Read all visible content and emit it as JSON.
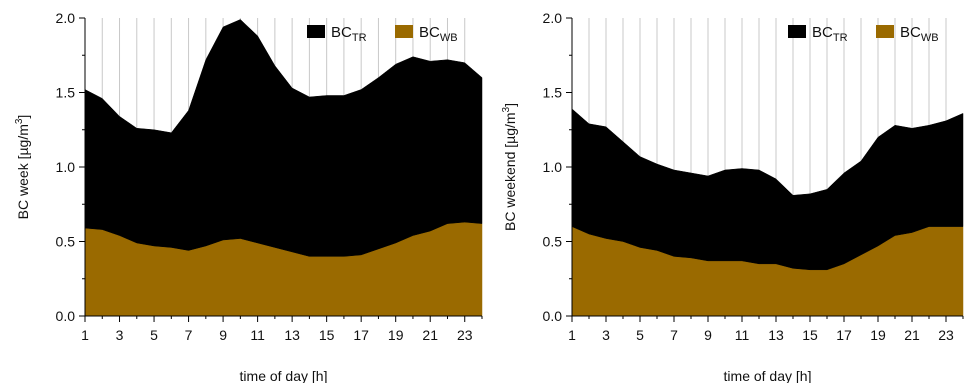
{
  "chart_data": [
    {
      "type": "area",
      "stacked": true,
      "xlabel": "time of day [h]",
      "ylabel_main": "BC week [µg/m",
      "ylabel_sup": "3",
      "ylabel_close": "]",
      "xlim": [
        1,
        24
      ],
      "ylim": [
        0,
        2.0
      ],
      "xticks": [
        "1",
        "3",
        "5",
        "7",
        "9",
        "11",
        "13",
        "15",
        "17",
        "19",
        "21",
        "23"
      ],
      "yticks": [
        "0.0",
        "0.5",
        "1.0",
        "1.5",
        "2.0"
      ],
      "grid": "vertical",
      "legend_position": "top-right",
      "x": [
        1,
        2,
        3,
        4,
        5,
        6,
        7,
        8,
        9,
        10,
        11,
        12,
        13,
        14,
        15,
        16,
        17,
        18,
        19,
        20,
        21,
        22,
        23,
        24
      ],
      "series": [
        {
          "name": "BC",
          "sub": "WB",
          "color": "#9a6a00",
          "values": [
            0.59,
            0.58,
            0.54,
            0.49,
            0.47,
            0.46,
            0.44,
            0.47,
            0.51,
            0.52,
            0.49,
            0.46,
            0.43,
            0.4,
            0.4,
            0.4,
            0.41,
            0.45,
            0.49,
            0.54,
            0.57,
            0.62,
            0.63,
            0.62
          ]
        },
        {
          "name": "BC",
          "sub": "TR",
          "color": "#000000",
          "values": [
            0.93,
            0.88,
            0.8,
            0.77,
            0.78,
            0.77,
            0.94,
            1.25,
            1.43,
            1.47,
            1.39,
            1.22,
            1.1,
            1.07,
            1.08,
            1.08,
            1.11,
            1.15,
            1.2,
            1.2,
            1.14,
            1.1,
            1.07,
            0.98
          ]
        }
      ]
    },
    {
      "type": "area",
      "stacked": true,
      "xlabel": "time of day [h]",
      "ylabel_main": "BC weekend [µg/m",
      "ylabel_sup": "3",
      "ylabel_close": "]",
      "xlim": [
        1,
        24
      ],
      "ylim": [
        0,
        2.0
      ],
      "xticks": [
        "1",
        "3",
        "5",
        "7",
        "9",
        "11",
        "13",
        "15",
        "17",
        "19",
        "21",
        "23"
      ],
      "yticks": [
        "0.0",
        "0.5",
        "1.0",
        "1.5",
        "2.0"
      ],
      "grid": "vertical",
      "legend_position": "top-right",
      "x": [
        1,
        2,
        3,
        4,
        5,
        6,
        7,
        8,
        9,
        10,
        11,
        12,
        13,
        14,
        15,
        16,
        17,
        18,
        19,
        20,
        21,
        22,
        23,
        24
      ],
      "series": [
        {
          "name": "BC",
          "sub": "WB",
          "color": "#9a6a00",
          "values": [
            0.6,
            0.55,
            0.52,
            0.5,
            0.46,
            0.44,
            0.4,
            0.39,
            0.37,
            0.37,
            0.37,
            0.35,
            0.35,
            0.32,
            0.31,
            0.31,
            0.35,
            0.41,
            0.47,
            0.54,
            0.56,
            0.6,
            0.6,
            0.6
          ]
        },
        {
          "name": "BC",
          "sub": "TR",
          "color": "#000000",
          "values": [
            0.79,
            0.74,
            0.75,
            0.67,
            0.61,
            0.58,
            0.58,
            0.57,
            0.57,
            0.61,
            0.62,
            0.63,
            0.57,
            0.49,
            0.51,
            0.54,
            0.61,
            0.63,
            0.73,
            0.74,
            0.7,
            0.68,
            0.71,
            0.76
          ]
        }
      ]
    }
  ]
}
